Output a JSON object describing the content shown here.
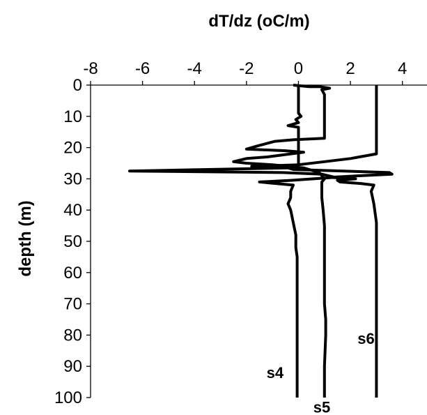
{
  "chart_data": {
    "type": "line",
    "xlabel": "dT/dz (oC/m)",
    "ylabel": "depth (m)",
    "xlim": [
      -8,
      5
    ],
    "ylim": [
      100,
      0
    ],
    "x_axis_position": "top",
    "y_axis_inverted": true,
    "grid": false,
    "legend": "none",
    "x_ticks": [
      -8,
      -6,
      -4,
      -2,
      0,
      2,
      4
    ],
    "x_tick_labels": [
      "-8",
      "-6",
      "-4",
      "-2",
      "0",
      "2",
      "4"
    ],
    "y_ticks": [
      0,
      10,
      20,
      30,
      40,
      50,
      60,
      70,
      80,
      90,
      100
    ],
    "y_tick_labels": [
      "0",
      "10",
      "20",
      "30",
      "40",
      "50",
      "60",
      "70",
      "80",
      "90",
      "100"
    ],
    "series": [
      {
        "name": "s4",
        "points": [
          [
            0,
            0
          ],
          [
            0,
            9
          ],
          [
            0.1,
            10
          ],
          [
            -0.1,
            11
          ],
          [
            0,
            12
          ],
          [
            -0.4,
            13
          ],
          [
            0,
            13.5
          ],
          [
            0,
            25.5
          ],
          [
            -1.8,
            26
          ],
          [
            -0.4,
            26.5
          ],
          [
            -6.5,
            27.5
          ],
          [
            -0.6,
            28
          ],
          [
            0.9,
            28.5
          ],
          [
            1.4,
            29.5
          ],
          [
            -0.3,
            30.5
          ],
          [
            -1.5,
            31
          ],
          [
            -0.2,
            32
          ],
          [
            -0.3,
            34
          ],
          [
            -0.3,
            36
          ],
          [
            -0.4,
            38
          ],
          [
            -0.3,
            40
          ],
          [
            -0.2,
            44
          ],
          [
            -0.1,
            48
          ],
          [
            -0.1,
            52
          ],
          [
            -0.05,
            55
          ],
          [
            -0.05,
            60
          ],
          [
            -0.05,
            70
          ],
          [
            -0.05,
            80
          ],
          [
            -0.05,
            90
          ],
          [
            -0.05,
            100
          ]
        ]
      },
      {
        "name": "s5",
        "points": [
          [
            -0.2,
            0
          ],
          [
            0.4,
            0.5
          ],
          [
            0.8,
            0.5
          ],
          [
            1.2,
            1
          ],
          [
            0.9,
            1.5
          ],
          [
            1,
            3
          ],
          [
            1,
            17
          ],
          [
            -0.2,
            17.5
          ],
          [
            -0.9,
            18
          ],
          [
            -1.6,
            19.5
          ],
          [
            -2,
            20.5
          ],
          [
            -0.5,
            21
          ],
          [
            0.2,
            21.5
          ],
          [
            -0.3,
            22
          ],
          [
            -1.2,
            23
          ],
          [
            -2,
            23.5
          ],
          [
            -2.5,
            24.5
          ],
          [
            -2,
            25
          ],
          [
            -1,
            25.5
          ],
          [
            0.2,
            26.5
          ],
          [
            0.8,
            28
          ],
          [
            0.9,
            29
          ],
          [
            1,
            30
          ],
          [
            0.9,
            31
          ],
          [
            0.9,
            33
          ],
          [
            0.9,
            36
          ],
          [
            0.95,
            40
          ],
          [
            1,
            45
          ],
          [
            1,
            50
          ],
          [
            1,
            60
          ],
          [
            1,
            70
          ],
          [
            1.05,
            75
          ],
          [
            1.05,
            80
          ],
          [
            1,
            90
          ],
          [
            1,
            100
          ]
        ]
      },
      {
        "name": "s6",
        "points": [
          [
            3,
            0
          ],
          [
            3,
            22
          ],
          [
            2,
            23.5
          ],
          [
            1,
            24.5
          ],
          [
            0,
            25.5
          ],
          [
            -0.4,
            26.5
          ],
          [
            -0.2,
            27
          ],
          [
            3.5,
            28
          ],
          [
            3.6,
            28.5
          ],
          [
            2.4,
            29
          ],
          [
            1.2,
            29.5
          ],
          [
            2.2,
            30
          ],
          [
            1.5,
            30.5
          ],
          [
            1.6,
            31
          ],
          [
            2.4,
            31.5
          ],
          [
            2.9,
            32
          ],
          [
            2.8,
            34
          ],
          [
            2.9,
            38
          ],
          [
            3,
            44
          ],
          [
            3,
            50
          ],
          [
            3,
            60
          ],
          [
            3,
            70
          ],
          [
            3,
            80
          ],
          [
            3,
            90
          ],
          [
            3,
            100
          ]
        ]
      }
    ],
    "series_labels": [
      {
        "text": "s4",
        "x": -0.9,
        "y": 92
      },
      {
        "text": "s5",
        "x": 0.9,
        "y": 103
      },
      {
        "text": "s6",
        "x": 2.6,
        "y": 81
      }
    ]
  }
}
